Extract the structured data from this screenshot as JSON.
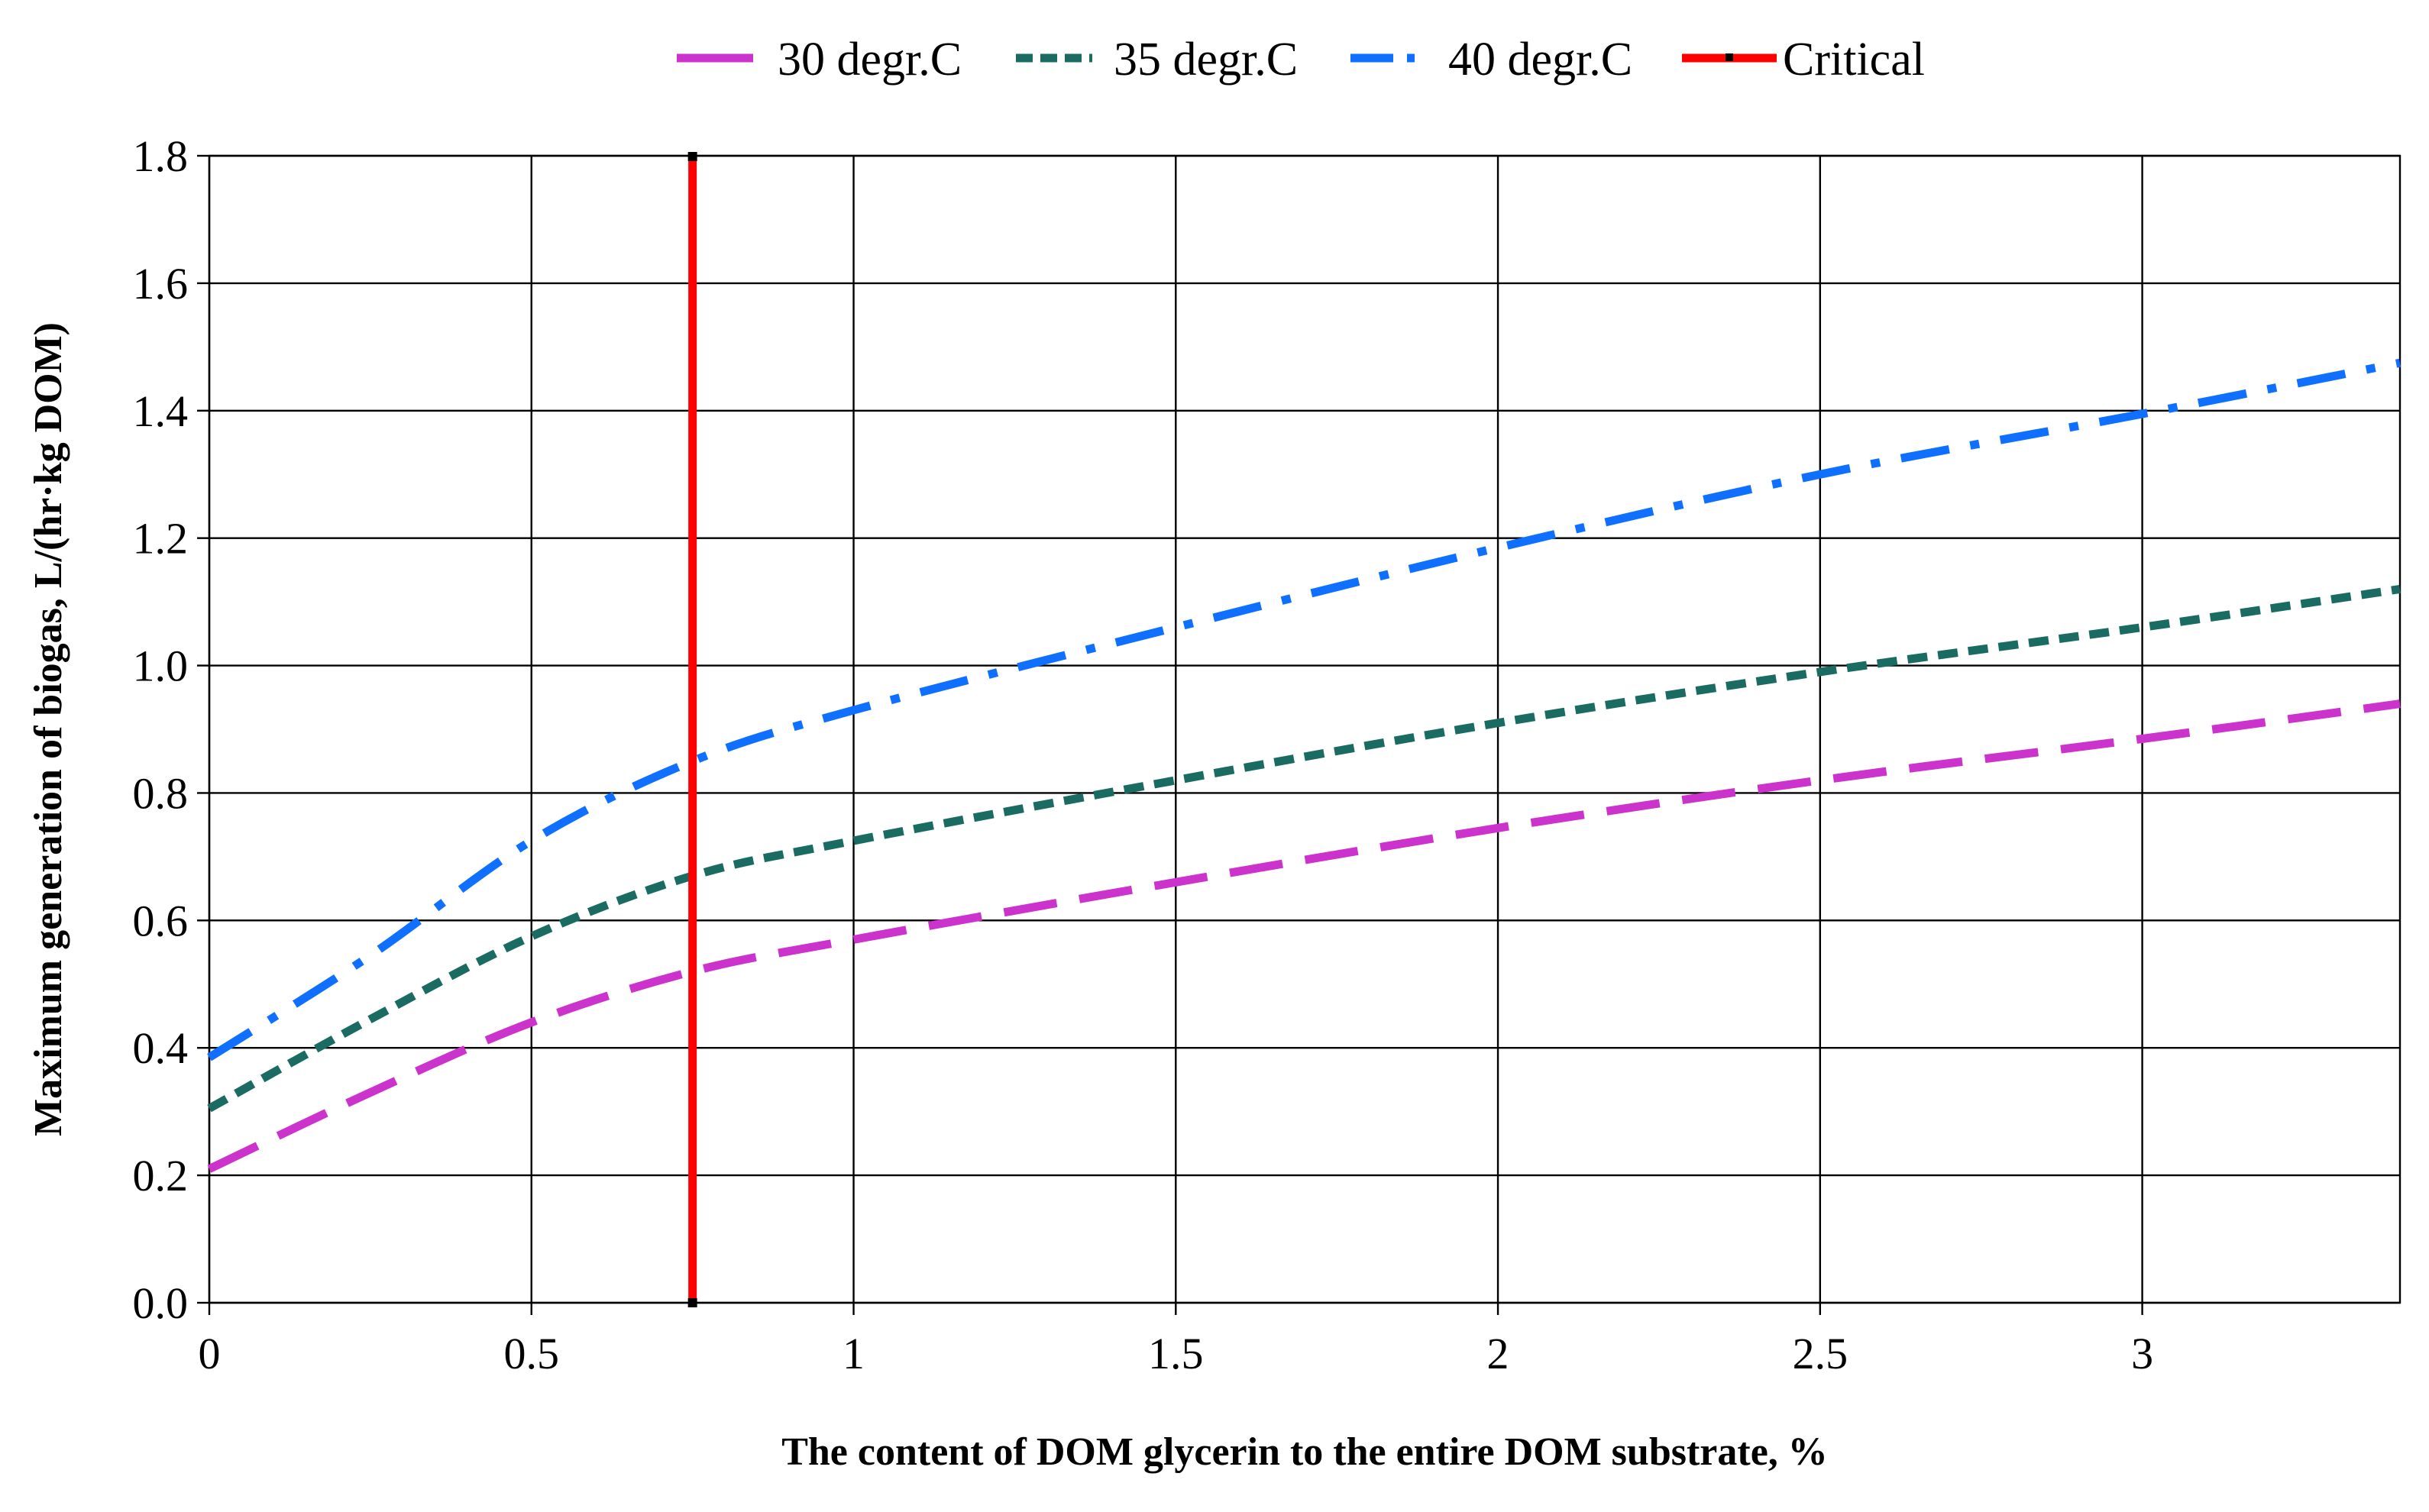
{
  "chart_data": {
    "type": "line",
    "title": "",
    "xlabel": "The content of DOM glycerin to the entire DOM substrate, %",
    "ylabel": "Maximum generation of biogas, L/(hr·kg DOM)",
    "xlim": [
      0,
      3.4
    ],
    "ylim": [
      0,
      1.8
    ],
    "xticks": [
      0,
      0.5,
      1,
      1.5,
      2,
      2.5,
      3
    ],
    "xtick_labels": [
      "0",
      "0.5",
      "1",
      "1.5",
      "2",
      "2.5",
      "3"
    ],
    "yticks": [
      0,
      0.2,
      0.4,
      0.6,
      0.8,
      1.0,
      1.2,
      1.4,
      1.6,
      1.8
    ],
    "ytick_labels": [
      "0.0",
      "0.2",
      "0.4",
      "0.6",
      "0.8",
      "1.0",
      "1.2",
      "1.4",
      "1.6",
      "1.8"
    ],
    "grid": true,
    "legend_position": "top-center",
    "series": [
      {
        "name": "30 degr.C",
        "color": "#cc33cc",
        "style": "long-dash",
        "x": [
          0,
          0.25,
          0.5,
          0.75,
          1.0,
          1.5,
          2.0,
          2.5,
          3.0,
          3.4
        ],
        "values": [
          0.21,
          0.33,
          0.44,
          0.52,
          0.57,
          0.66,
          0.745,
          0.82,
          0.885,
          0.94
        ]
      },
      {
        "name": "35 degr.C",
        "color": "#1a6b62",
        "style": "short-dash",
        "x": [
          0,
          0.25,
          0.5,
          0.75,
          1.0,
          1.5,
          2.0,
          2.5,
          3.0,
          3.4
        ],
        "values": [
          0.305,
          0.445,
          0.575,
          0.67,
          0.725,
          0.82,
          0.91,
          0.99,
          1.06,
          1.12
        ]
      },
      {
        "name": "40 degr.C",
        "color": "#0f6fff",
        "style": "dash-dot",
        "x": [
          0,
          0.25,
          0.5,
          0.75,
          1.0,
          1.5,
          2.0,
          2.5,
          3.0,
          3.4
        ],
        "values": [
          0.385,
          0.545,
          0.725,
          0.85,
          0.93,
          1.06,
          1.185,
          1.3,
          1.395,
          1.475
        ]
      }
    ],
    "critical_line": {
      "name": "Critical",
      "color": "#ff0000",
      "x": 0.75,
      "y_range": [
        0,
        1.8
      ]
    }
  }
}
